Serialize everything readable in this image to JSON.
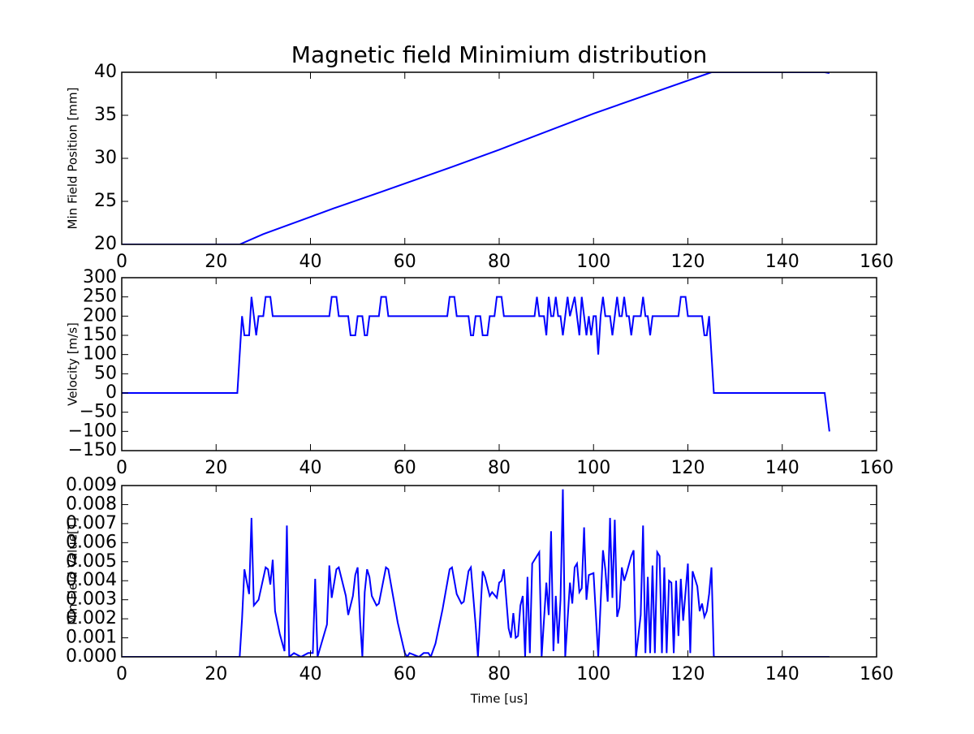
{
  "chart_data": [
    {
      "type": "line",
      "title": "Magnetic field Minimium distribution",
      "y_label": "Min Field Position [mm]",
      "xlim": [
        0,
        160
      ],
      "xticks": [
        0,
        20,
        40,
        60,
        80,
        100,
        120,
        140,
        160
      ],
      "ylim": [
        20,
        40
      ],
      "yticks": [
        20,
        25,
        30,
        35,
        40
      ],
      "series": [
        {
          "color": "#0000ff",
          "x": [
            0,
            25,
            30,
            45,
            55,
            70,
            80,
            100,
            125,
            149,
            150
          ],
          "values": [
            20,
            20,
            21.2,
            24.2,
            26.1,
            29,
            31,
            35.2,
            40,
            40,
            39.9
          ]
        }
      ]
    },
    {
      "type": "line",
      "y_label": "Velocity [m/s]",
      "xlim": [
        0,
        160
      ],
      "xticks": [
        0,
        20,
        40,
        60,
        80,
        100,
        120,
        140,
        160
      ],
      "ylim": [
        -150,
        300
      ],
      "yticks": [
        {
          "value": -150,
          "label": "−150"
        },
        {
          "value": -100,
          "label": "−100"
        },
        {
          "value": -50,
          "label": "−50"
        },
        0,
        50,
        100,
        150,
        200,
        250,
        300
      ],
      "series": [
        {
          "color": "#0000ff",
          "x": [
            0,
            24.5,
            25.5,
            26,
            27,
            27.5,
            28.5,
            29,
            30,
            30.5,
            31.5,
            32,
            44,
            44.5,
            45.5,
            46,
            48,
            48.5,
            49.5,
            50,
            51,
            51.5,
            52,
            52.5,
            54.5,
            55,
            56,
            56.5,
            69,
            69.5,
            70.5,
            71,
            73.5,
            74,
            74.5,
            75,
            76,
            76.5,
            77.5,
            78,
            79,
            79.5,
            80.5,
            81,
            87.5,
            88,
            88.5,
            89.5,
            90,
            90.5,
            91,
            91.5,
            92,
            92.5,
            93,
            93.5,
            94,
            94.5,
            95,
            96,
            96.5,
            97,
            97.5,
            98,
            98.5,
            99,
            99.5,
            100,
            100.5,
            101,
            101.5,
            102,
            102.5,
            103.5,
            104,
            104.5,
            105,
            105.5,
            106,
            106.5,
            107,
            107.5,
            108,
            108.5,
            110,
            110.5,
            111,
            111.5,
            112,
            112.5,
            118,
            118.5,
            119.5,
            120,
            123,
            123.5,
            124,
            124.5,
            125.5,
            149,
            150
          ],
          "values": [
            0,
            0,
            200,
            150,
            150,
            250,
            150,
            200,
            200,
            250,
            250,
            200,
            200,
            250,
            250,
            200,
            200,
            150,
            150,
            200,
            200,
            150,
            150,
            200,
            200,
            250,
            250,
            200,
            200,
            250,
            250,
            200,
            200,
            150,
            150,
            200,
            200,
            150,
            150,
            200,
            200,
            250,
            250,
            200,
            200,
            250,
            200,
            200,
            150,
            250,
            200,
            200,
            250,
            200,
            200,
            150,
            200,
            250,
            200,
            250,
            200,
            150,
            250,
            200,
            150,
            200,
            150,
            200,
            200,
            100,
            200,
            250,
            200,
            200,
            150,
            200,
            250,
            200,
            200,
            250,
            200,
            200,
            150,
            200,
            200,
            250,
            200,
            200,
            150,
            200,
            200,
            250,
            250,
            200,
            200,
            150,
            150,
            200,
            0,
            0,
            -100
          ]
        }
      ]
    },
    {
      "type": "line",
      "y_label": "Min Field Value[T]",
      "x_label": "Time [us]",
      "xlim": [
        0,
        160
      ],
      "xticks": [
        0,
        20,
        40,
        60,
        80,
        100,
        120,
        140,
        160
      ],
      "ylim": [
        0,
        0.009
      ],
      "yticks": [
        {
          "value": 0,
          "label": "0.000"
        },
        0.001,
        0.002,
        0.003,
        0.004,
        0.005,
        0.006,
        0.007,
        0.008,
        0.009
      ],
      "series": [
        {
          "color": "#0000ff",
          "x": [
            0,
            25,
            25.5,
            26,
            27,
            27.5,
            28,
            29,
            30.5,
            31,
            31.5,
            32,
            32.5,
            33.5,
            34.5,
            35,
            35.5,
            36.5,
            38,
            39.5,
            40.5,
            41,
            41.5,
            43.5,
            44,
            44.5,
            45.5,
            46,
            47.5,
            48,
            49,
            49.5,
            50,
            50.5,
            51,
            51.5,
            52,
            52.5,
            53,
            54,
            54.5,
            56,
            56.5,
            58.5,
            60,
            60.5,
            61,
            62,
            63,
            64,
            65,
            65.5,
            66.5,
            68,
            69.5,
            70,
            71,
            72,
            72.5,
            73.5,
            74,
            75,
            75.5,
            76.5,
            77,
            78,
            78.5,
            79.5,
            80,
            80.5,
            81,
            82,
            82.5,
            83,
            83.5,
            84,
            84.5,
            85,
            85.5,
            86,
            86.5,
            87,
            88,
            88.5,
            89,
            90,
            90.5,
            91,
            91.5,
            92,
            92.5,
            93,
            93.5,
            94,
            95,
            95.5,
            96,
            96.5,
            97,
            97.5,
            98,
            98.5,
            99,
            100,
            101,
            101.5,
            102,
            102.5,
            103,
            103.5,
            104,
            104.5,
            105,
            105.5,
            106,
            106.5,
            107,
            108,
            108.5,
            109,
            110,
            110.5,
            111,
            111.5,
            112,
            112.5,
            113,
            113.5,
            114,
            114.5,
            115,
            115.5,
            116,
            116.5,
            117,
            117.5,
            118,
            118.5,
            119,
            120,
            120.5,
            121,
            122,
            122.5,
            123,
            123.5,
            124,
            124.5,
            125,
            125.5,
            150
          ],
          "values": [
            0,
            0,
            0.002,
            0.0046,
            0.0033,
            0.0073,
            0.0027,
            0.003,
            0.0047,
            0.0046,
            0.0038,
            0.0051,
            0.0024,
            0.0012,
            0.0003,
            0.0069,
            0,
            0.0002,
            0,
            0.0002,
            0.0002,
            0.0041,
            0,
            0.0017,
            0.0048,
            0.0031,
            0.0046,
            0.0047,
            0.0032,
            0.0022,
            0.0032,
            0.0043,
            0.0047,
            0.002,
            0,
            0.0034,
            0.0046,
            0.0042,
            0.0032,
            0.0027,
            0.0028,
            0.0047,
            0.0046,
            0.0018,
            0.0002,
            0,
            0.0002,
            0.0001,
            0,
            0.0002,
            0.0002,
            0,
            0.0007,
            0.0025,
            0.0046,
            0.0047,
            0.0033,
            0.0028,
            0.0029,
            0.0045,
            0.0047,
            0.0017,
            0,
            0.0045,
            0.0042,
            0.0032,
            0.0034,
            0.0031,
            0.0039,
            0.004,
            0.0046,
            0.0015,
            0.001,
            0.0023,
            0.001,
            0.0011,
            0.0027,
            0.0032,
            0,
            0.0042,
            0.0002,
            0.0049,
            0.0053,
            0.0055,
            0,
            0.0039,
            0.0022,
            0.0066,
            0.0003,
            0.0032,
            0.0007,
            0.003,
            0.0088,
            0,
            0.0039,
            0.0028,
            0.0047,
            0.0049,
            0.0034,
            0.0036,
            0.0068,
            0.003,
            0.0043,
            0.0044,
            0,
            0.0028,
            0.0056,
            0.0046,
            0.0029,
            0.0073,
            0.0031,
            0.0072,
            0.0021,
            0.0026,
            0.0047,
            0.004,
            0.0044,
            0.0053,
            0.0056,
            0,
            0.0022,
            0.0069,
            0.0002,
            0.0042,
            0.0002,
            0.0048,
            0.0002,
            0.0055,
            0.0053,
            0.0002,
            0.0047,
            0.0002,
            0.004,
            0.0039,
            0.0002,
            0.004,
            0.0011,
            0.0041,
            0.0019,
            0.0049,
            0.0002,
            0.0045,
            0.0037,
            0.0024,
            0.0028,
            0.0021,
            0.0024,
            0.0033,
            0.0047,
            0,
            0
          ]
        }
      ]
    }
  ]
}
